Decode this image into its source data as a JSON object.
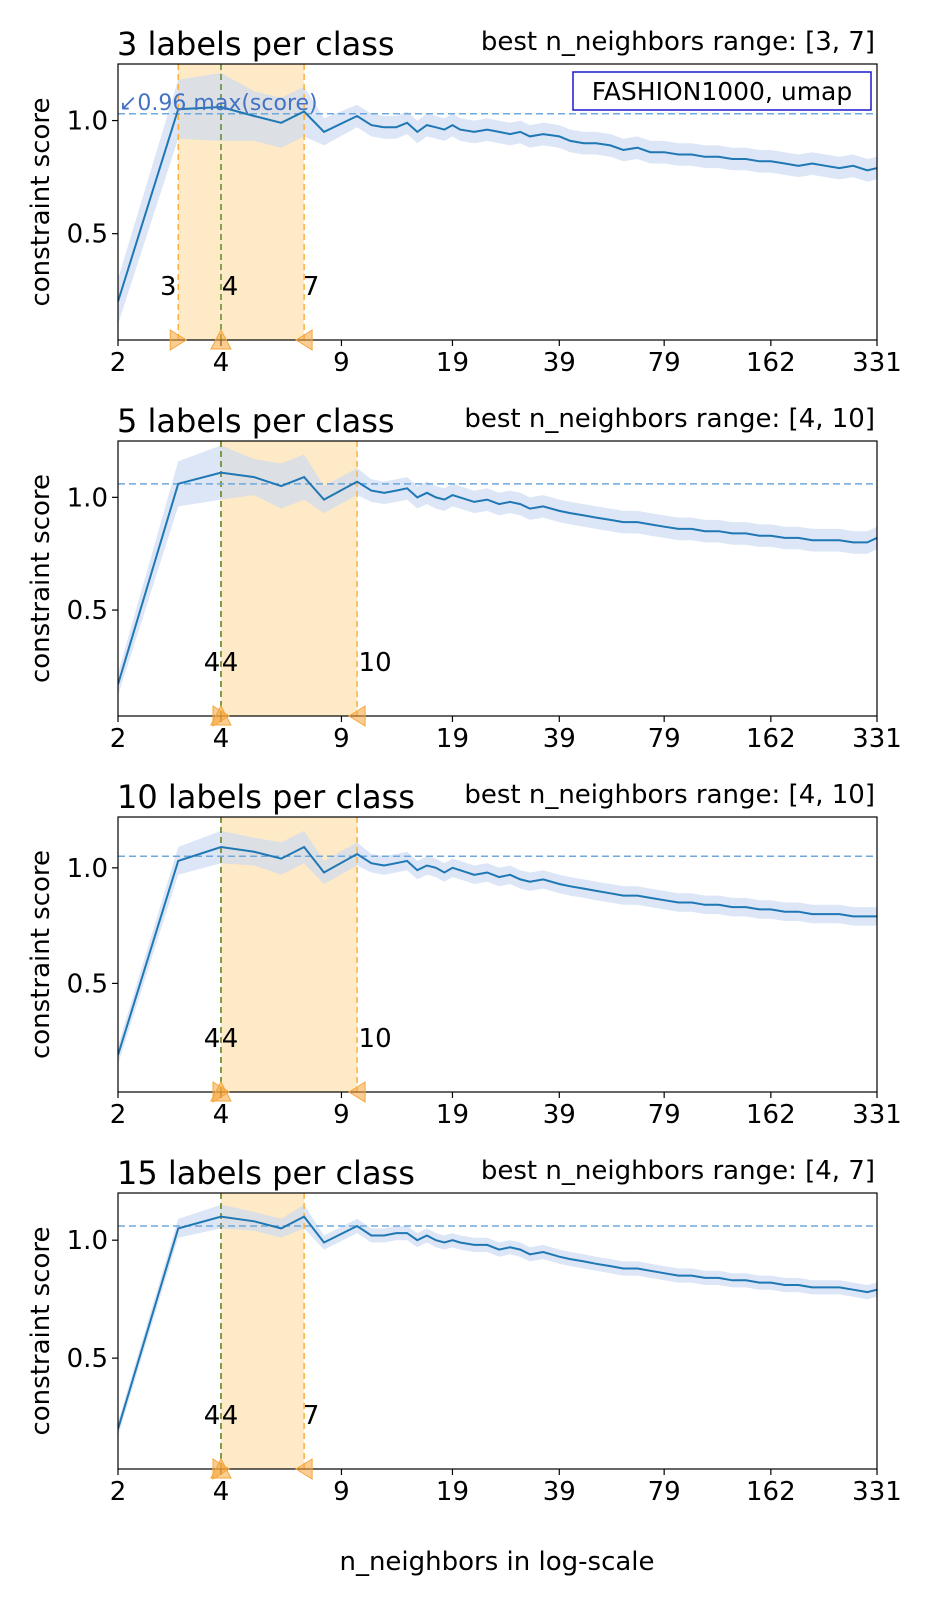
{
  "figure": {
    "xlabel": "n_neighbors in log-scale",
    "ylabel": "constraint score",
    "annotation_box": "FASHION1000, umap",
    "max_note": "↙0.96 max(score)"
  },
  "chart_data": [
    {
      "type": "line",
      "title": "3 labels per class",
      "subtitle": "best n_neighbors range: [3, 7]",
      "ylabel": "constraint score",
      "xlabel": "",
      "x_scale": "log",
      "xlim": [
        2,
        331
      ],
      "ylim": [
        0.03,
        1.25
      ],
      "xticks": [
        2,
        4,
        9,
        19,
        39,
        79,
        162,
        331
      ],
      "yticks": [
        0.5,
        1.0
      ],
      "threshold": 1.03,
      "range": [
        3,
        7
      ],
      "best": 4,
      "range_labels": [
        "3",
        "4",
        "7"
      ],
      "series": [
        {
          "x": [
            2,
            3,
            4,
            5,
            6,
            7,
            8,
            10,
            11,
            12,
            13,
            14,
            15,
            16,
            17,
            18,
            19,
            20,
            22,
            24,
            26,
            28,
            30,
            32,
            35,
            39,
            42,
            46,
            50,
            55,
            60,
            66,
            72,
            79,
            87,
            95,
            104,
            114,
            125,
            137,
            150,
            162,
            178,
            195,
            214,
            234,
            257,
            282,
            310,
            331
          ],
          "y": [
            0.2,
            1.05,
            1.06,
            1.02,
            0.99,
            1.04,
            0.95,
            1.02,
            0.98,
            0.97,
            0.97,
            0.99,
            0.95,
            0.98,
            0.97,
            0.96,
            0.98,
            0.96,
            0.95,
            0.96,
            0.95,
            0.94,
            0.95,
            0.93,
            0.94,
            0.93,
            0.91,
            0.9,
            0.9,
            0.89,
            0.87,
            0.88,
            0.86,
            0.86,
            0.85,
            0.85,
            0.84,
            0.84,
            0.83,
            0.83,
            0.82,
            0.82,
            0.81,
            0.8,
            0.81,
            0.8,
            0.79,
            0.8,
            0.78,
            0.79
          ],
          "band": [
            0.1,
            0.13,
            0.15,
            0.11,
            0.11,
            0.11,
            0.06,
            0.05,
            0.05,
            0.05,
            0.05,
            0.05,
            0.05,
            0.05,
            0.05,
            0.05,
            0.05,
            0.05,
            0.05,
            0.05,
            0.05,
            0.05,
            0.05,
            0.05,
            0.05,
            0.05,
            0.05,
            0.05,
            0.05,
            0.05,
            0.05,
            0.05,
            0.05,
            0.05,
            0.05,
            0.05,
            0.05,
            0.05,
            0.05,
            0.05,
            0.05,
            0.05,
            0.05,
            0.05,
            0.05,
            0.05,
            0.05,
            0.05,
            0.05,
            0.05
          ]
        }
      ]
    },
    {
      "type": "line",
      "title": "5 labels per class",
      "subtitle": "best n_neighbors range: [4, 10]",
      "ylabel": "constraint score",
      "xlabel": "",
      "x_scale": "log",
      "xlim": [
        2,
        331
      ],
      "ylim": [
        0.03,
        1.25
      ],
      "xticks": [
        2,
        4,
        9,
        19,
        39,
        79,
        162,
        331
      ],
      "yticks": [
        0.5,
        1.0
      ],
      "threshold": 1.06,
      "range": [
        4,
        10
      ],
      "best": 4,
      "range_labels": [
        "4",
        "4",
        "10"
      ],
      "series": [
        {
          "x": [
            2,
            3,
            4,
            5,
            6,
            7,
            8,
            10,
            11,
            12,
            13,
            14,
            15,
            16,
            17,
            18,
            19,
            20,
            22,
            24,
            26,
            28,
            30,
            32,
            35,
            39,
            42,
            46,
            50,
            55,
            60,
            66,
            72,
            79,
            87,
            95,
            104,
            114,
            125,
            137,
            150,
            162,
            178,
            195,
            214,
            234,
            257,
            282,
            310,
            331
          ],
          "y": [
            0.17,
            1.06,
            1.11,
            1.09,
            1.05,
            1.09,
            0.99,
            1.07,
            1.03,
            1.02,
            1.03,
            1.04,
            1.0,
            1.02,
            1.0,
            0.99,
            1.01,
            1.0,
            0.98,
            0.99,
            0.97,
            0.98,
            0.97,
            0.95,
            0.96,
            0.94,
            0.93,
            0.92,
            0.91,
            0.9,
            0.89,
            0.89,
            0.88,
            0.87,
            0.86,
            0.86,
            0.85,
            0.85,
            0.84,
            0.84,
            0.83,
            0.83,
            0.82,
            0.82,
            0.81,
            0.81,
            0.81,
            0.8,
            0.8,
            0.82
          ],
          "band": [
            0.05,
            0.1,
            0.12,
            0.08,
            0.1,
            0.1,
            0.06,
            0.06,
            0.05,
            0.05,
            0.05,
            0.05,
            0.05,
            0.05,
            0.05,
            0.05,
            0.05,
            0.05,
            0.05,
            0.05,
            0.05,
            0.05,
            0.05,
            0.05,
            0.05,
            0.05,
            0.05,
            0.05,
            0.05,
            0.05,
            0.05,
            0.05,
            0.05,
            0.05,
            0.05,
            0.05,
            0.05,
            0.05,
            0.05,
            0.05,
            0.05,
            0.05,
            0.05,
            0.05,
            0.05,
            0.05,
            0.05,
            0.05,
            0.05,
            0.05
          ]
        }
      ]
    },
    {
      "type": "line",
      "title": "10 labels per class",
      "subtitle": "best n_neighbors range: [4, 10]",
      "ylabel": "constraint score",
      "xlabel": "",
      "x_scale": "log",
      "xlim": [
        2,
        331
      ],
      "ylim": [
        0.03,
        1.22
      ],
      "xticks": [
        2,
        4,
        9,
        19,
        39,
        79,
        162,
        331
      ],
      "yticks": [
        0.5,
        1.0
      ],
      "threshold": 1.05,
      "range": [
        4,
        10
      ],
      "best": 4,
      "range_labels": [
        "4",
        "4",
        "10"
      ],
      "series": [
        {
          "x": [
            2,
            3,
            4,
            5,
            6,
            7,
            8,
            10,
            11,
            12,
            13,
            14,
            15,
            16,
            17,
            18,
            19,
            20,
            22,
            24,
            26,
            28,
            30,
            32,
            35,
            39,
            42,
            46,
            50,
            55,
            60,
            66,
            72,
            79,
            87,
            95,
            104,
            114,
            125,
            137,
            150,
            162,
            178,
            195,
            214,
            234,
            257,
            282,
            310,
            331
          ],
          "y": [
            0.19,
            1.03,
            1.09,
            1.07,
            1.04,
            1.09,
            0.98,
            1.06,
            1.02,
            1.01,
            1.02,
            1.03,
            0.99,
            1.01,
            1.0,
            0.98,
            1.0,
            0.99,
            0.97,
            0.98,
            0.96,
            0.97,
            0.95,
            0.94,
            0.95,
            0.93,
            0.92,
            0.91,
            0.9,
            0.89,
            0.88,
            0.88,
            0.87,
            0.86,
            0.85,
            0.85,
            0.84,
            0.84,
            0.83,
            0.83,
            0.82,
            0.82,
            0.81,
            0.81,
            0.8,
            0.8,
            0.8,
            0.79,
            0.79,
            0.79
          ],
          "band": [
            0.04,
            0.06,
            0.07,
            0.06,
            0.07,
            0.07,
            0.05,
            0.05,
            0.04,
            0.04,
            0.04,
            0.04,
            0.04,
            0.04,
            0.04,
            0.04,
            0.04,
            0.04,
            0.04,
            0.04,
            0.04,
            0.04,
            0.04,
            0.04,
            0.04,
            0.04,
            0.04,
            0.04,
            0.04,
            0.04,
            0.04,
            0.04,
            0.04,
            0.04,
            0.04,
            0.04,
            0.04,
            0.04,
            0.04,
            0.04,
            0.04,
            0.04,
            0.04,
            0.04,
            0.04,
            0.04,
            0.04,
            0.04,
            0.04,
            0.04
          ]
        }
      ]
    },
    {
      "type": "line",
      "title": "15 labels per class",
      "subtitle": "best n_neighbors range: [4, 7]",
      "ylabel": "constraint score",
      "xlabel": "n_neighbors in log-scale",
      "x_scale": "log",
      "xlim": [
        2,
        331
      ],
      "ylim": [
        0.03,
        1.2
      ],
      "xticks": [
        2,
        4,
        9,
        19,
        39,
        79,
        162,
        331
      ],
      "yticks": [
        0.5,
        1.0
      ],
      "threshold": 1.06,
      "range": [
        4,
        7
      ],
      "best": 4,
      "range_labels": [
        "4",
        "4",
        "7"
      ],
      "series": [
        {
          "x": [
            2,
            3,
            4,
            5,
            6,
            7,
            8,
            10,
            11,
            12,
            13,
            14,
            15,
            16,
            17,
            18,
            19,
            20,
            22,
            24,
            26,
            28,
            30,
            32,
            35,
            39,
            42,
            46,
            50,
            55,
            60,
            66,
            72,
            79,
            87,
            95,
            104,
            114,
            125,
            137,
            150,
            162,
            178,
            195,
            214,
            234,
            257,
            282,
            310,
            331
          ],
          "y": [
            0.2,
            1.05,
            1.1,
            1.08,
            1.05,
            1.1,
            0.99,
            1.06,
            1.02,
            1.02,
            1.03,
            1.03,
            1.0,
            1.02,
            1.0,
            0.99,
            1.0,
            0.99,
            0.98,
            0.98,
            0.96,
            0.97,
            0.96,
            0.94,
            0.95,
            0.93,
            0.92,
            0.91,
            0.9,
            0.89,
            0.88,
            0.88,
            0.87,
            0.86,
            0.85,
            0.85,
            0.84,
            0.84,
            0.83,
            0.83,
            0.82,
            0.82,
            0.81,
            0.81,
            0.8,
            0.8,
            0.8,
            0.79,
            0.78,
            0.79
          ],
          "band": [
            0.03,
            0.04,
            0.05,
            0.04,
            0.04,
            0.05,
            0.03,
            0.03,
            0.03,
            0.03,
            0.03,
            0.03,
            0.03,
            0.03,
            0.03,
            0.03,
            0.03,
            0.03,
            0.03,
            0.03,
            0.03,
            0.03,
            0.03,
            0.03,
            0.03,
            0.03,
            0.03,
            0.03,
            0.03,
            0.03,
            0.03,
            0.03,
            0.03,
            0.03,
            0.03,
            0.03,
            0.03,
            0.03,
            0.03,
            0.03,
            0.03,
            0.03,
            0.03,
            0.03,
            0.03,
            0.03,
            0.03,
            0.03,
            0.03,
            0.03
          ]
        }
      ]
    }
  ],
  "colors": {
    "line": "#1f77b4",
    "band": "#c9d9f2",
    "range_fill": "#fde3b4",
    "range_edge": "#ffb03a",
    "threshold": "#6fa8dc",
    "best_line": "#5a8a2a",
    "marker": "#f5a53a",
    "annotation": "#4472c4",
    "box_edge": "#1a1acc"
  }
}
